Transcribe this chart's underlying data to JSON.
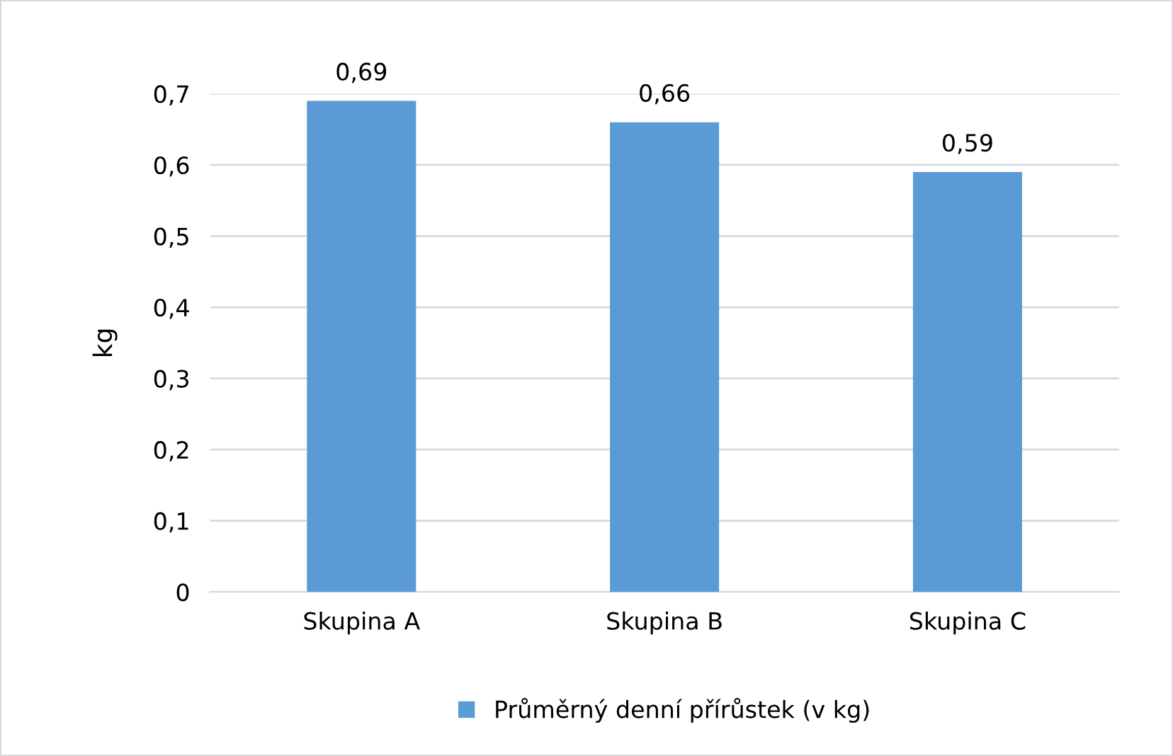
{
  "chart_data": {
    "type": "bar",
    "ylabel": "kg",
    "categories": [
      "Skupina A",
      "Skupina B",
      "Skupina C"
    ],
    "series": [
      {
        "name": "Průměrný denní přírůstek (v kg)",
        "color": "#5b9bd5",
        "values": [
          0.69,
          0.66,
          0.59
        ],
        "value_labels": [
          "0,69",
          "0,66",
          "0,59"
        ]
      }
    ],
    "ylim": [
      0,
      0.7
    ],
    "yticks": [
      0,
      {
        "value": 0.1,
        "label": "0,1"
      },
      {
        "value": 0.2,
        "label": "0,2"
      },
      {
        "value": 0.3,
        "label": "0,3"
      },
      {
        "value": 0.4,
        "label": "0,4"
      },
      {
        "value": 0.5,
        "label": "0,5"
      },
      {
        "value": 0.6,
        "label": "0,6"
      },
      {
        "value": 0.7,
        "label": "0,7"
      }
    ],
    "grid": "y",
    "legend": "bottom"
  }
}
